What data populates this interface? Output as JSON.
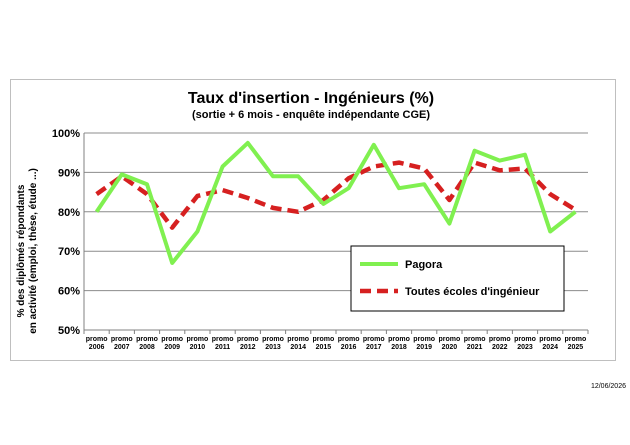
{
  "chart_data": {
    "type": "line",
    "title": "Taux d'insertion - Ingénieurs (%)",
    "subtitle": "(sortie + 6 mois - enquête indépendante CGE)",
    "ylabel_line1": "% des diplômés répondants",
    "ylabel_line2": "en activité (emploi, thèse, étude ...)",
    "xlabel": "",
    "ylim": [
      50,
      100
    ],
    "yticks": [
      50,
      60,
      70,
      80,
      90,
      100
    ],
    "ytick_labels": [
      "50%",
      "60%",
      "70%",
      "80%",
      "90%",
      "100%"
    ],
    "grid": true,
    "legend_position": "bottom-right",
    "categories": [
      [
        "promo",
        "2006"
      ],
      [
        "promo",
        "2007"
      ],
      [
        "promo",
        "2008"
      ],
      [
        "promo",
        "2009"
      ],
      [
        "promo",
        "2010"
      ],
      [
        "promo",
        "2011"
      ],
      [
        "promo",
        "2012"
      ],
      [
        "promo",
        "2013"
      ],
      [
        "promo",
        "2014"
      ],
      [
        "promo",
        "2015"
      ],
      [
        "promo",
        "2016"
      ],
      [
        "promo",
        "2017"
      ],
      [
        "promo",
        "2018"
      ],
      [
        "promo",
        "2019"
      ],
      [
        "promo",
        "2020"
      ],
      [
        "promo",
        "2021"
      ],
      [
        "promo",
        "2022"
      ],
      [
        "promo",
        "2023"
      ],
      [
        "promo",
        "2024"
      ],
      [
        "promo",
        "2025"
      ]
    ],
    "series": [
      {
        "name": "Pagora",
        "color": "#80f050",
        "style": "solid",
        "values": [
          80,
          89.5,
          87,
          67,
          75,
          91.5,
          97.5,
          89,
          89,
          82,
          86,
          97,
          86,
          87,
          77,
          95.5,
          93,
          94.5,
          75,
          80
        ]
      },
      {
        "name": "Toutes écoles d'ingénieur",
        "color": "#d62020",
        "style": "dashed",
        "values": [
          84.5,
          89,
          84.5,
          76,
          84,
          85.5,
          83.5,
          81,
          80,
          83,
          88.5,
          91.5,
          92.5,
          91,
          83,
          92.5,
          90.5,
          91,
          84.5,
          80.5
        ]
      }
    ]
  },
  "footer": {
    "date": "12/06/2026"
  }
}
